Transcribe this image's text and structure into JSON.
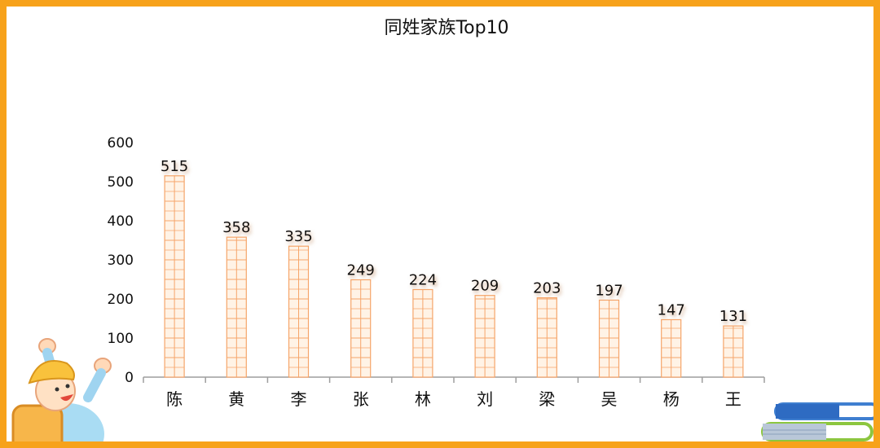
{
  "chart_data": {
    "type": "bar",
    "title": "同姓家族Top10",
    "categories": [
      "陈",
      "黄",
      "李",
      "张",
      "林",
      "刘",
      "梁",
      "吴",
      "杨",
      "王"
    ],
    "values": [
      515,
      358,
      335,
      249,
      224,
      209,
      203,
      197,
      147,
      131
    ],
    "yticks": [
      "0",
      "100",
      "200",
      "300",
      "400",
      "500",
      "600"
    ],
    "ylim": [
      0,
      600
    ],
    "xlabel": "",
    "ylabel": "",
    "grid": false,
    "legend": "none"
  },
  "colors": {
    "border": "#f7a21b",
    "bar_fill": "#fff3e6",
    "bar_grid": "#f6a56a",
    "axis": "#9e9e9e",
    "text": "#111111"
  },
  "decorations": {
    "left_character": "cartoon-kid-with-hat-icon",
    "right_books": "stacked-books-icon"
  }
}
